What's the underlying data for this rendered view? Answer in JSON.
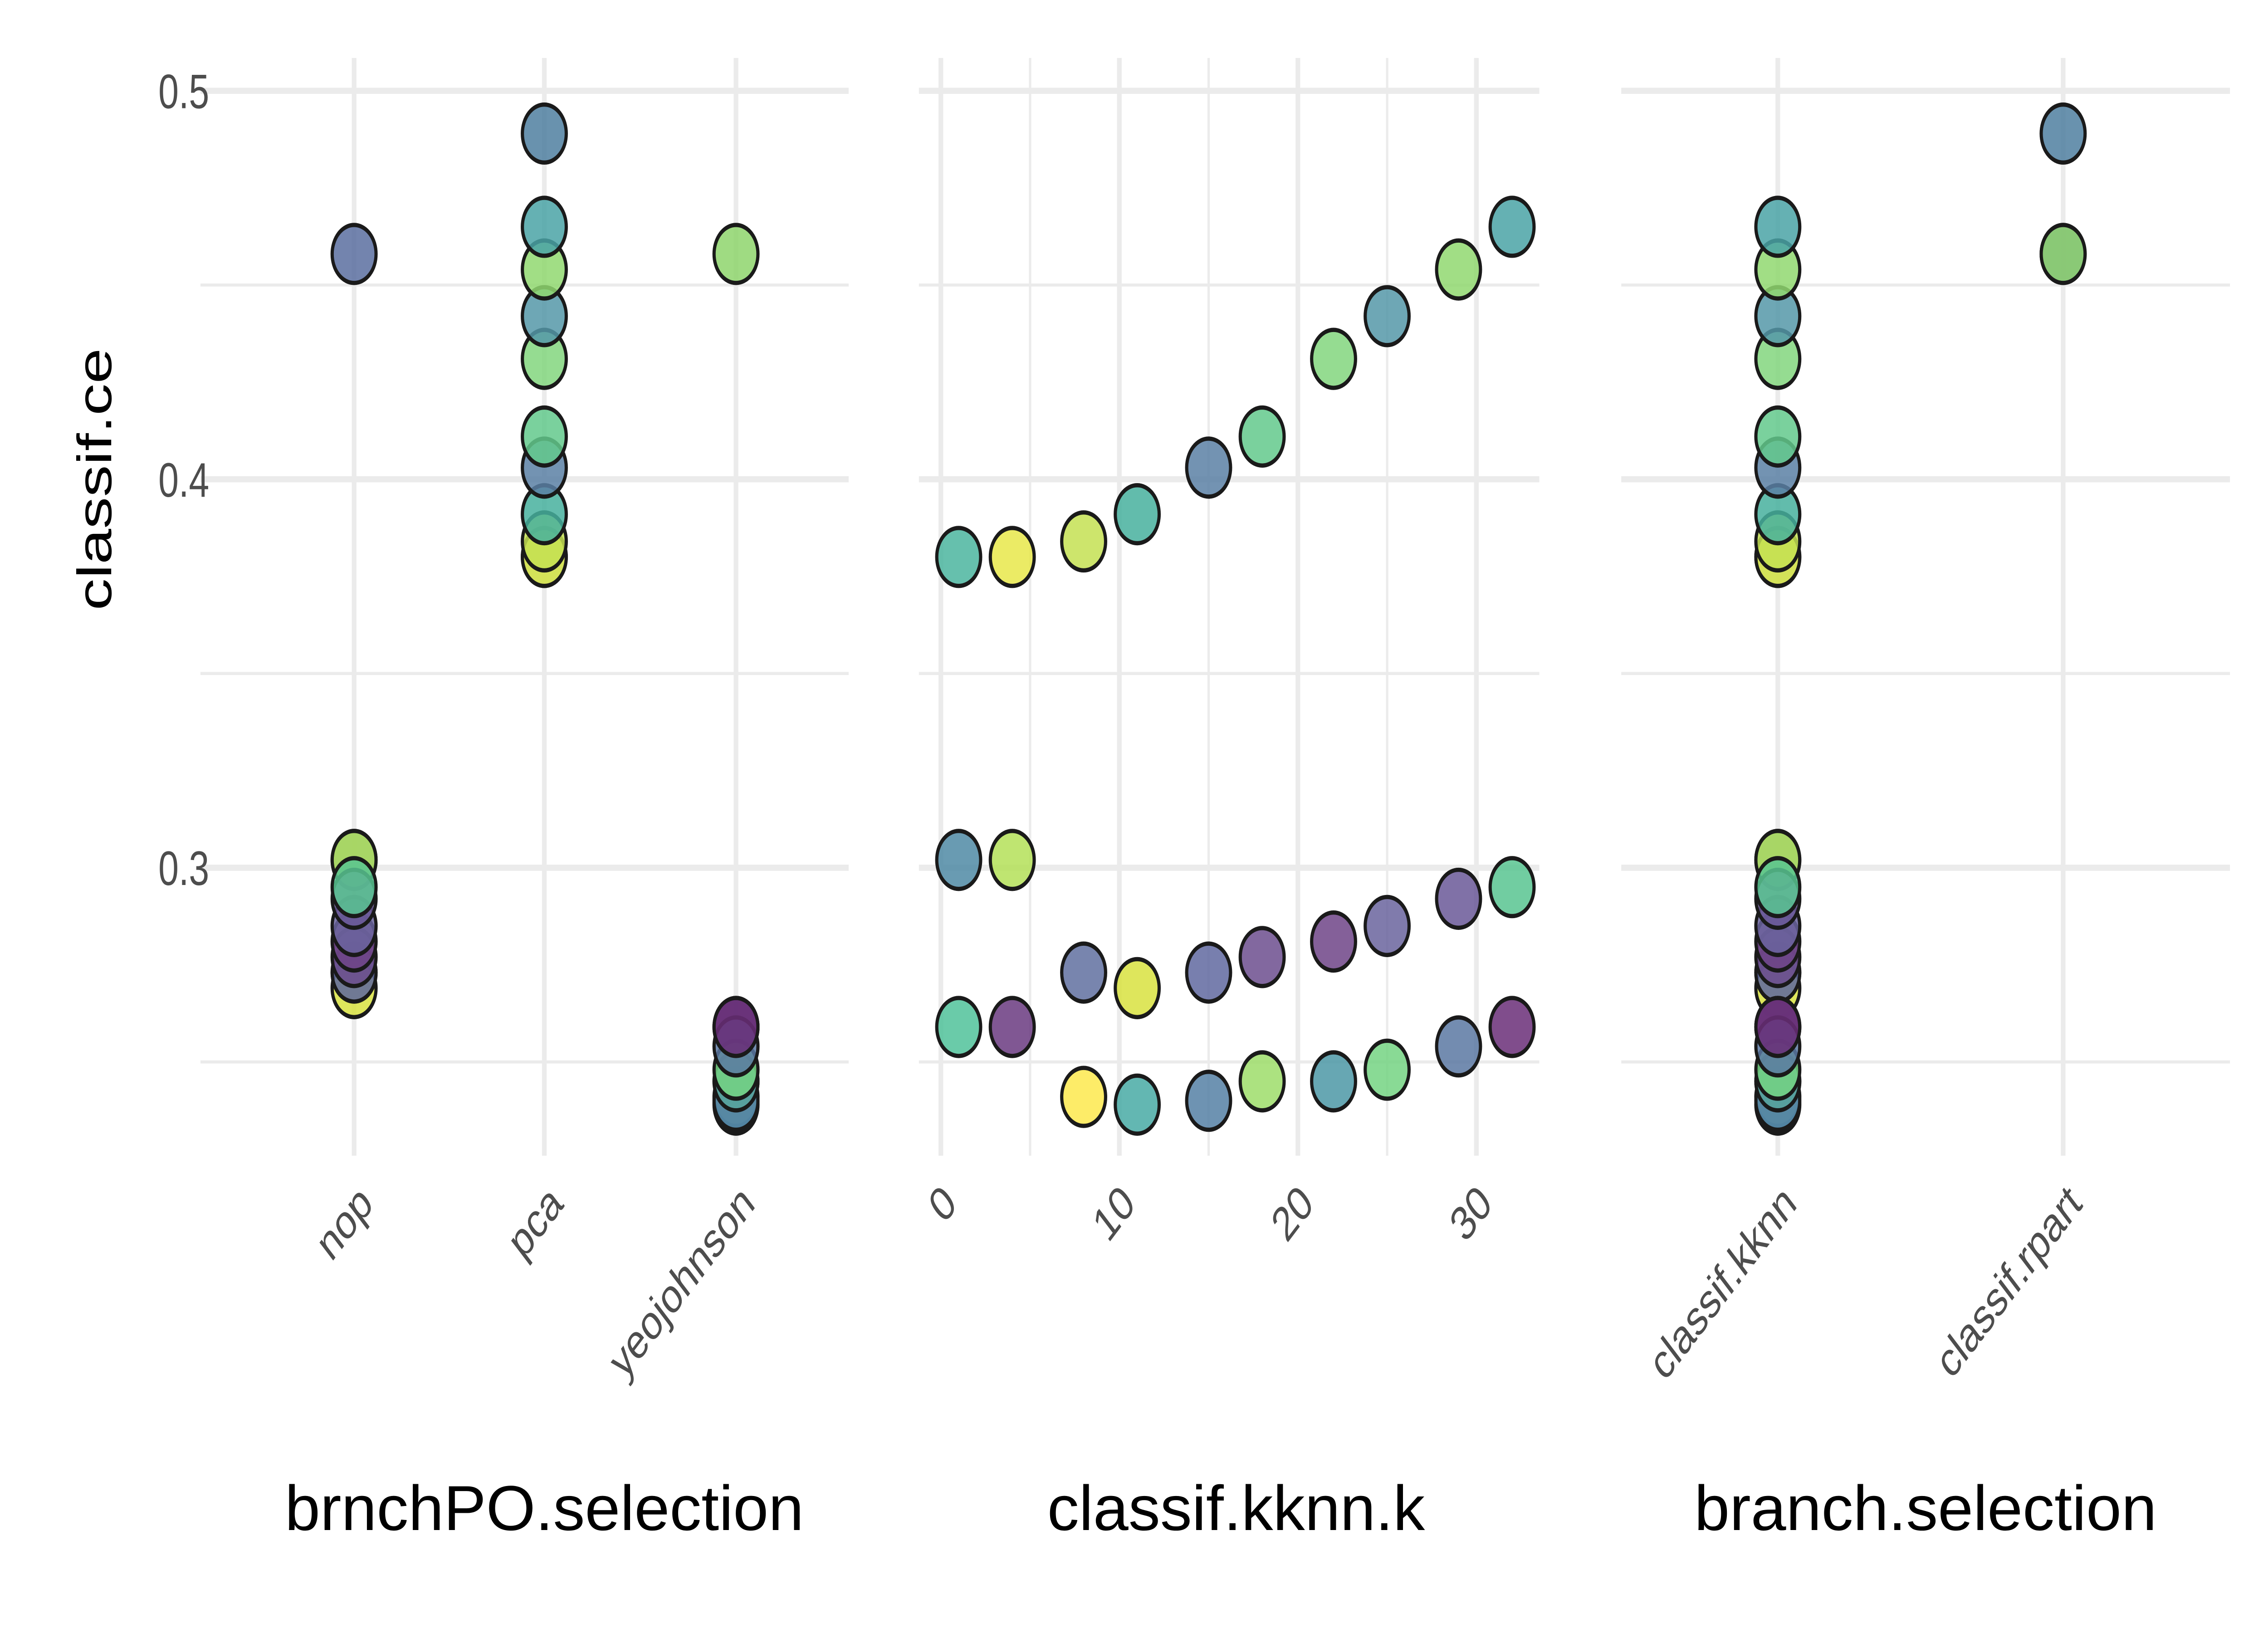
{
  "chart_data": {
    "type": "scatter",
    "ylabel": "classif.ce",
    "ylim": [
      0.23,
      0.51
    ],
    "yticks": [
      "0.3",
      "0.4",
      "0.5"
    ],
    "grid": true,
    "panels": [
      {
        "xlabel": "brnchPO.selection",
        "xtype": "categorical",
        "categories": [
          "nop",
          "pca",
          "yeojohnson"
        ],
        "field": "brnch"
      },
      {
        "xlabel": "classif.kknn.k",
        "xtype": "numeric",
        "xticks": [
          "0",
          "10",
          "20",
          "30"
        ],
        "xlim": [
          0,
          33
        ],
        "field": "k"
      },
      {
        "xlabel": "branch.selection",
        "xtype": "categorical",
        "categories": [
          "classif.kknn",
          "classif.rpart"
        ],
        "field": "branch"
      }
    ],
    "points": [
      {
        "brnch": "pca",
        "k": 1,
        "branch": "classif.kknn",
        "ce": 0.38,
        "color": "#4bb59f"
      },
      {
        "brnch": "pca",
        "k": 4,
        "branch": "classif.kknn",
        "ce": 0.38,
        "color": "#e8e84a"
      },
      {
        "brnch": "pca",
        "k": 8,
        "branch": "classif.kknn",
        "ce": 0.384,
        "color": "#c4e052"
      },
      {
        "brnch": "pca",
        "k": 11,
        "branch": "classif.kknn",
        "ce": 0.391,
        "color": "#47b09e"
      },
      {
        "brnch": "pca",
        "k": 15,
        "branch": "classif.kknn",
        "ce": 0.403,
        "color": "#5a80a4"
      },
      {
        "brnch": "pca",
        "k": 18,
        "branch": "classif.kknn",
        "ce": 0.411,
        "color": "#63c98c"
      },
      {
        "brnch": "pca",
        "k": 22,
        "branch": "classif.kknn",
        "ce": 0.431,
        "color": "#82d67e"
      },
      {
        "brnch": "pca",
        "k": 25,
        "branch": "classif.kknn",
        "ce": 0.442,
        "color": "#5598a8"
      },
      {
        "brnch": "pca",
        "k": 29,
        "branch": "classif.kknn",
        "ce": 0.454,
        "color": "#90d870"
      },
      {
        "brnch": "pca",
        "k": 32,
        "branch": "classif.kknn",
        "ce": 0.465,
        "color": "#4aa3a6"
      },
      {
        "brnch": "nop",
        "k": 1,
        "branch": "classif.kknn",
        "ce": 0.302,
        "color": "#4f8aa5"
      },
      {
        "brnch": "nop",
        "k": 4,
        "branch": "classif.kknn",
        "ce": 0.302,
        "color": "#b4e058"
      },
      {
        "brnch": "nop",
        "k": 8,
        "branch": "classif.kknn",
        "ce": 0.273,
        "color": "#6070a0"
      },
      {
        "brnch": "nop",
        "k": 11,
        "branch": "classif.kknn",
        "ce": 0.269,
        "color": "#d8e240"
      },
      {
        "brnch": "nop",
        "k": 15,
        "branch": "classif.kknn",
        "ce": 0.273,
        "color": "#6068a0"
      },
      {
        "brnch": "nop",
        "k": 18,
        "branch": "classif.kknn",
        "ce": 0.277,
        "color": "#6c4e8e"
      },
      {
        "brnch": "nop",
        "k": 22,
        "branch": "classif.kknn",
        "ce": 0.281,
        "color": "#6e4487"
      },
      {
        "brnch": "nop",
        "k": 25,
        "branch": "classif.kknn",
        "ce": 0.285,
        "color": "#6a649e"
      },
      {
        "brnch": "nop",
        "k": 29,
        "branch": "classif.kknn",
        "ce": 0.292,
        "color": "#6a5898"
      },
      {
        "brnch": "nop",
        "k": 32,
        "branch": "classif.kknn",
        "ce": 0.295,
        "color": "#58c490"
      },
      {
        "brnch": "yeojohnson",
        "k": 1,
        "branch": "classif.kknn",
        "ce": 0.259,
        "color": "#50c29a"
      },
      {
        "brnch": "yeojohnson",
        "k": 4,
        "branch": "classif.kknn",
        "ce": 0.259,
        "color": "#6a3a80"
      },
      {
        "brnch": "yeojohnson",
        "k": 8,
        "branch": "classif.kknn",
        "ce": 0.241,
        "color": "#fde94d"
      },
      {
        "brnch": "yeojohnson",
        "k": 11,
        "branch": "classif.kknn",
        "ce": 0.239,
        "color": "#48aaa5"
      },
      {
        "brnch": "yeojohnson",
        "k": 15,
        "branch": "classif.kknn",
        "ce": 0.24,
        "color": "#5580a4"
      },
      {
        "brnch": "yeojohnson",
        "k": 18,
        "branch": "classif.kknn",
        "ce": 0.245,
        "color": "#9edd6a"
      },
      {
        "brnch": "yeojohnson",
        "k": 22,
        "branch": "classif.kknn",
        "ce": 0.245,
        "color": "#4c98a6"
      },
      {
        "brnch": "yeojohnson",
        "k": 25,
        "branch": "classif.kknn",
        "ce": 0.248,
        "color": "#74d482"
      },
      {
        "brnch": "yeojohnson",
        "k": 29,
        "branch": "classif.kknn",
        "ce": 0.254,
        "color": "#5a78a2"
      },
      {
        "brnch": "yeojohnson",
        "k": 32,
        "branch": "classif.kknn",
        "ce": 0.259,
        "color": "#6a2e78"
      },
      {
        "brnch": "pca",
        "k": null,
        "branch": "classif.rpart",
        "ce": 0.489,
        "color": "#4f7fa0"
      },
      {
        "brnch": "nop",
        "k": null,
        "branch": "classif.rpart",
        "ce": 0.458,
        "color": "#5b6fa0"
      },
      {
        "brnch": "yeojohnson",
        "k": null,
        "branch": "classif.rpart",
        "ce": 0.458,
        "color": "#8ed56c"
      }
    ]
  }
}
